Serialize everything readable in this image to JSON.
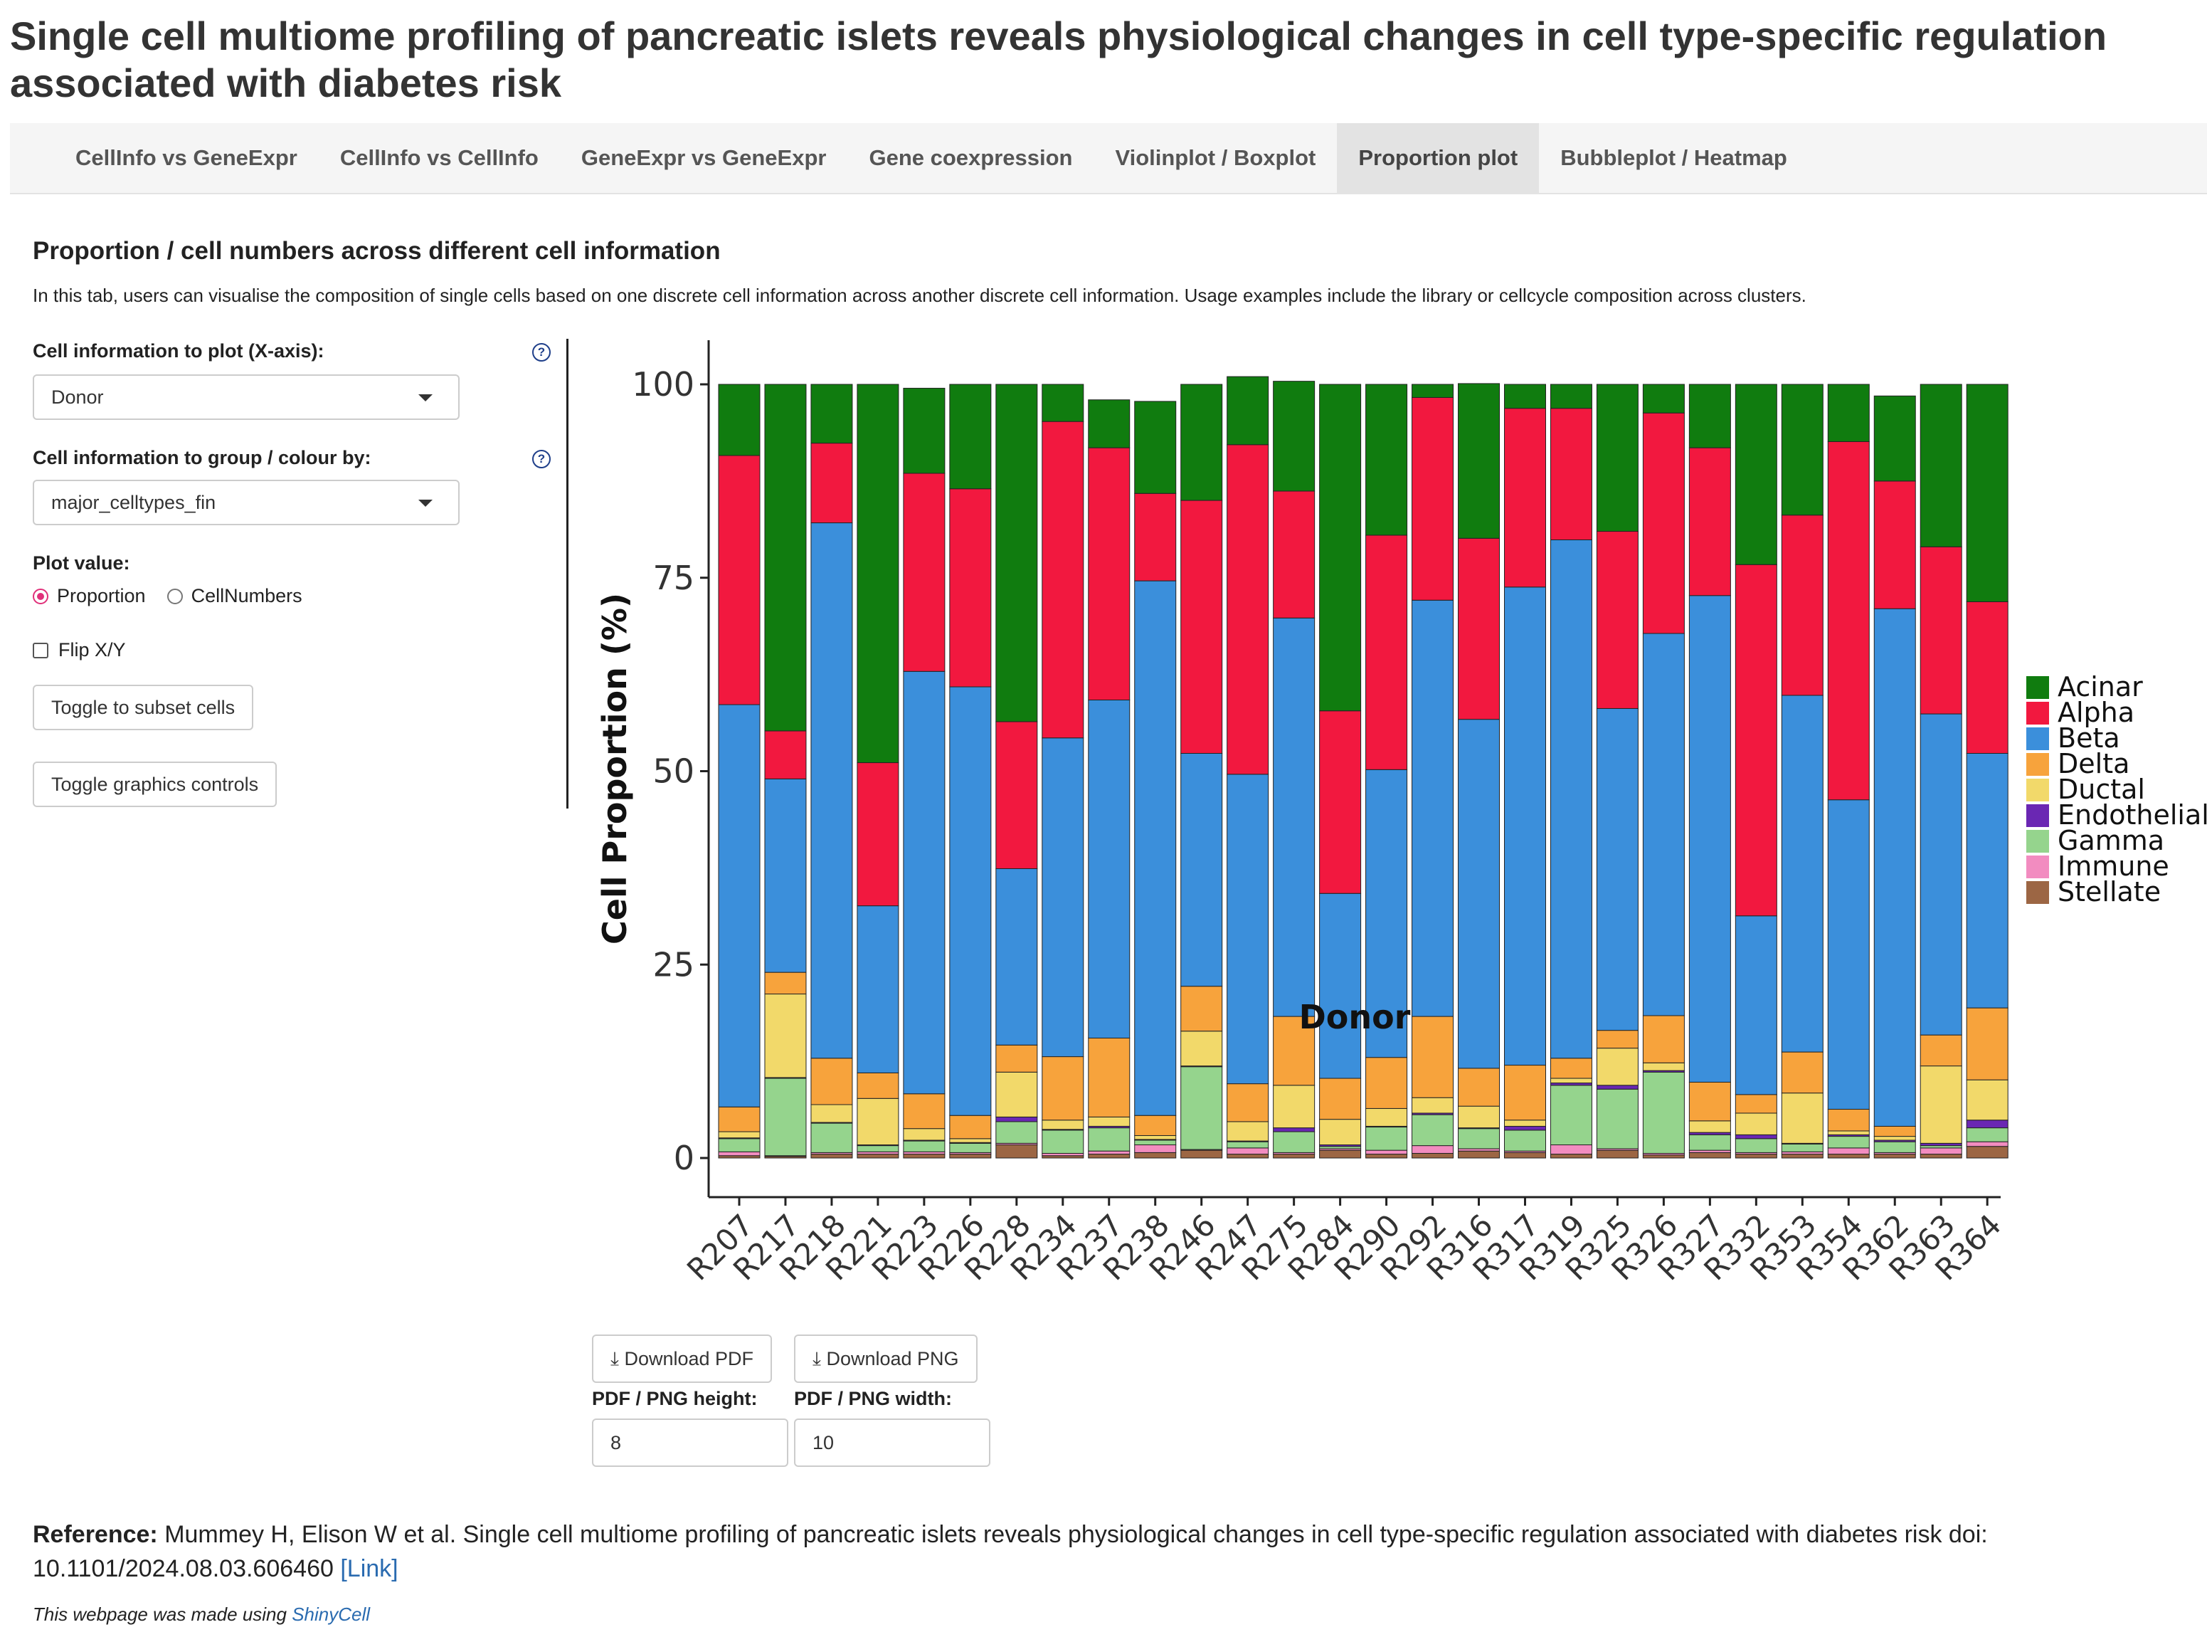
{
  "page": {
    "title": "Single cell multiome profiling of pancreatic islets reveals physiological changes in cell type-specific regulation associated with diabetes risk"
  },
  "tabs": [
    {
      "label": "CellInfo vs GeneExpr"
    },
    {
      "label": "CellInfo vs CellInfo"
    },
    {
      "label": "GeneExpr vs GeneExpr"
    },
    {
      "label": "Gene coexpression"
    },
    {
      "label": "Violinplot / Boxplot"
    },
    {
      "label": "Proportion plot"
    },
    {
      "label": "Bubbleplot / Heatmap"
    }
  ],
  "section": {
    "title": "Proportion / cell numbers across different cell information",
    "description": "In this tab, users can visualise the composition of single cells based on one discrete cell information across another discrete cell information. Usage examples include the library or cellcycle composition across clusters."
  },
  "controls": {
    "x_label": "Cell information to plot (X-axis):",
    "x_value": "Donor",
    "group_label": "Cell information to group / colour by:",
    "group_value": "major_celltypes_fin",
    "plot_value_label": "Plot value:",
    "radio_proportion": "Proportion",
    "radio_cellnumbers": "CellNumbers",
    "flip_label": "Flip X/Y",
    "subset_button": "Toggle to subset cells",
    "graphics_button": "Toggle graphics controls",
    "help_symbol": "?"
  },
  "download": {
    "pdf_label": "Download PDF",
    "png_label": "Download PNG",
    "height_label": "PDF / PNG height:",
    "width_label": "PDF / PNG width:",
    "height_value": "8",
    "width_value": "10"
  },
  "footer": {
    "ref_bold": "Reference:",
    "ref_text": "Mummey H, Elison W et al. Single cell multiome profiling of pancreatic islets reveals physiological changes in cell type-specific regulation associated with diabetes risk doi: 10.1101/2024.08.03.606460",
    "ref_link": "[Link]",
    "made_text": "This webpage was made using",
    "made_link": "ShinyCell"
  },
  "chart_data": {
    "type": "bar",
    "stacked": true,
    "xlabel": "Donor",
    "ylabel": "Cell Proportion (%)",
    "ylim": [
      0,
      100
    ],
    "yticks": [
      0,
      25,
      50,
      75,
      100
    ],
    "legend_position": "right",
    "categories": [
      "R207",
      "R217",
      "R218",
      "R221",
      "R223",
      "R226",
      "R228",
      "R234",
      "R237",
      "R238",
      "R246",
      "R247",
      "R275",
      "R284",
      "R290",
      "R292",
      "R316",
      "R317",
      "R319",
      "R325",
      "R326",
      "R327",
      "R332",
      "R353",
      "R354",
      "R362",
      "R363",
      "R364"
    ],
    "series": [
      {
        "name": "Stellate",
        "color": "#9c6644",
        "values": [
          0.3,
          0.2,
          0.5,
          0.5,
          0.5,
          0.5,
          1.7,
          0.3,
          0.5,
          0.7,
          1.0,
          0.5,
          0.5,
          1.0,
          0.5,
          0.6,
          0.9,
          0.7,
          0.5,
          1.0,
          0.4,
          0.7,
          0.5,
          0.5,
          0.5,
          0.5,
          0.5,
          1.5
        ]
      },
      {
        "name": "Immune",
        "color": "#f28cc0",
        "values": [
          0.5,
          0.1,
          0.2,
          0.3,
          0.3,
          0.2,
          0.2,
          0.3,
          0.4,
          1.0,
          0.1,
          0.8,
          0.2,
          0.2,
          0.5,
          1.0,
          0.3,
          0.2,
          1.2,
          0.2,
          0.2,
          0.3,
          0.2,
          0.3,
          0.8,
          0.2,
          0.8,
          0.6
        ]
      },
      {
        "name": "Gamma",
        "color": "#95d48d",
        "values": [
          1.7,
          10.0,
          3.8,
          0.8,
          1.4,
          1.2,
          2.8,
          3.0,
          3.0,
          0.6,
          10.7,
          0.8,
          2.7,
          0.3,
          3.0,
          4.0,
          2.6,
          2.7,
          7.7,
          7.7,
          10.5,
          2.0,
          1.8,
          1.0,
          1.5,
          1.4,
          0.3,
          1.8
        ]
      },
      {
        "name": "Endothelial",
        "color": "#6a27b3",
        "values": [
          0.1,
          0.1,
          0.1,
          0.1,
          0.1,
          0.1,
          0.6,
          0.1,
          0.2,
          0.1,
          0.1,
          0.1,
          0.5,
          0.2,
          0.1,
          0.2,
          0.1,
          0.5,
          0.3,
          0.5,
          0.2,
          0.3,
          0.5,
          0.1,
          0.2,
          0.2,
          0.3,
          1.0
        ]
      },
      {
        "name": "Ductal",
        "color": "#f2d96a",
        "values": [
          0.8,
          10.8,
          2.3,
          6.0,
          1.5,
          0.5,
          5.8,
          1.2,
          1.2,
          0.5,
          4.5,
          2.5,
          5.5,
          3.3,
          2.3,
          2.0,
          2.8,
          0.8,
          0.6,
          4.8,
          1.0,
          1.5,
          2.8,
          6.5,
          0.5,
          0.5,
          10.0,
          5.2
        ]
      },
      {
        "name": "Delta",
        "color": "#f7a33c",
        "values": [
          3.2,
          2.8,
          6.0,
          3.3,
          4.5,
          3.0,
          3.5,
          8.2,
          10.2,
          2.6,
          5.8,
          4.9,
          8.9,
          5.3,
          6.6,
          10.5,
          4.9,
          7.1,
          2.6,
          2.3,
          6.1,
          5.0,
          2.4,
          5.3,
          2.8,
          1.3,
          4.0,
          9.3
        ]
      },
      {
        "name": "Beta",
        "color": "#3b8fdb",
        "values": [
          52.0,
          25.0,
          69.2,
          21.6,
          54.6,
          55.4,
          22.8,
          41.2,
          43.7,
          69.1,
          30.1,
          40.0,
          51.5,
          23.9,
          37.2,
          53.8,
          45.1,
          61.8,
          67.0,
          41.6,
          49.4,
          62.9,
          23.1,
          46.1,
          40.0,
          66.9,
          41.5,
          32.9
        ]
      },
      {
        "name": "Alpha",
        "color": "#f2183f",
        "values": [
          32.2,
          6.2,
          10.3,
          18.5,
          25.6,
          25.6,
          19.0,
          40.9,
          32.6,
          11.3,
          32.7,
          42.6,
          16.4,
          23.6,
          30.3,
          26.2,
          23.4,
          23.1,
          17.0,
          22.9,
          28.5,
          19.1,
          45.4,
          23.3,
          46.3,
          16.5,
          21.6,
          19.6
        ]
      },
      {
        "name": "Acinar",
        "color": "#107c0f",
        "values": [
          9.2,
          44.8,
          7.6,
          48.9,
          11.0,
          13.5,
          43.6,
          4.8,
          6.2,
          11.9,
          15.0,
          8.8,
          14.2,
          42.2,
          19.5,
          1.7,
          20.0,
          3.1,
          3.1,
          19.0,
          3.7,
          8.2,
          23.3,
          16.9,
          7.4,
          11.0,
          21.0,
          28.1
        ]
      }
    ],
    "legend_order": [
      "Acinar",
      "Alpha",
      "Beta",
      "Delta",
      "Ductal",
      "Endothelial",
      "Gamma",
      "Immune",
      "Stellate"
    ]
  }
}
